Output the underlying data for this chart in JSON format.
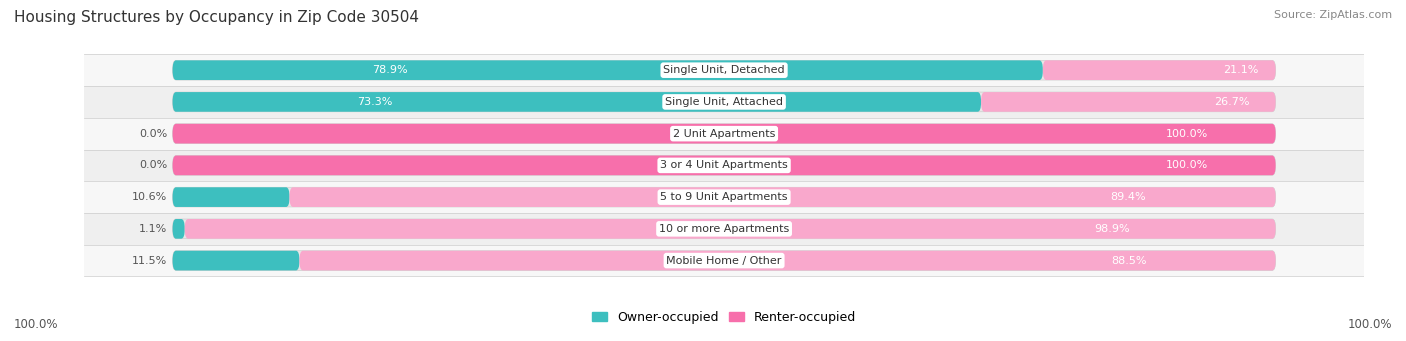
{
  "title": "Housing Structures by Occupancy in Zip Code 30504",
  "source": "Source: ZipAtlas.com",
  "categories": [
    "Single Unit, Detached",
    "Single Unit, Attached",
    "2 Unit Apartments",
    "3 or 4 Unit Apartments",
    "5 to 9 Unit Apartments",
    "10 or more Apartments",
    "Mobile Home / Other"
  ],
  "owner_pct": [
    78.9,
    73.3,
    0.0,
    0.0,
    10.6,
    1.1,
    11.5
  ],
  "renter_pct": [
    21.1,
    26.7,
    100.0,
    100.0,
    89.4,
    98.9,
    88.5
  ],
  "owner_color": "#3DBFBF",
  "renter_color": "#F76FAB",
  "renter_color_light": "#F9A8CC",
  "bg_color": "#f0f0f0",
  "bar_bg_color": "#e0e0e0",
  "row_bg_light": "#f8f8f8",
  "row_bg_dark": "#eeeeee",
  "title_fontsize": 11,
  "source_fontsize": 8,
  "label_fontsize": 8,
  "bar_height": 0.62,
  "legend_labels": [
    "Owner-occupied",
    "Renter-occupied"
  ],
  "bottom_labels": [
    "100.0%",
    "100.0%"
  ]
}
